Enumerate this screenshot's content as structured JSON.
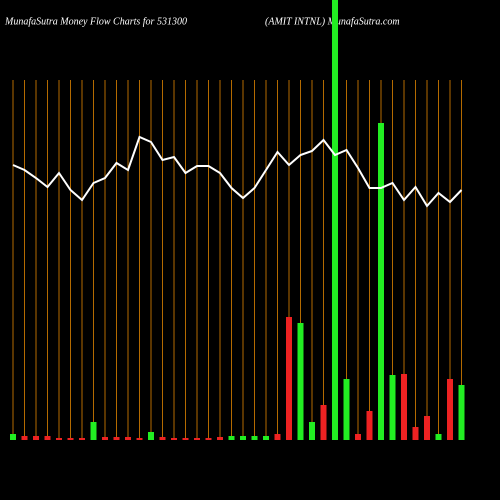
{
  "chart_data": {
    "type": "bar",
    "title": "MunafaSutra  Money Flow  Charts for 531300",
    "subtitle": "(AMIT INTNL) MunafaSutra.com",
    "categories": [
      null,
      null,
      null,
      null,
      null,
      null,
      null,
      null,
      null,
      null,
      null,
      null,
      null,
      null,
      null,
      null,
      null,
      null,
      null,
      null,
      null,
      null,
      null,
      null,
      null,
      null,
      null,
      null,
      null,
      null,
      null,
      null,
      null,
      null,
      null,
      null,
      null,
      null,
      null,
      null
    ],
    "values": [
      6,
      4,
      4,
      4,
      2,
      2,
      2,
      18,
      3,
      3,
      3,
      2,
      8,
      3,
      2,
      2,
      2,
      2,
      3,
      4,
      4,
      4,
      4,
      6,
      123,
      117,
      18,
      35,
      440,
      61,
      6,
      29,
      317,
      65,
      66,
      13,
      24,
      6,
      61,
      55
    ],
    "colors": [
      "#22ee22",
      "#ee2222",
      "#ee2222",
      "#ee2222",
      "#ee2222",
      "#ee2222",
      "#ee2222",
      "#22ee22",
      "#ee2222",
      "#ee2222",
      "#ee2222",
      "#ee2222",
      "#22ee22",
      "#ee2222",
      "#ee2222",
      "#ee2222",
      "#ee2222",
      "#ee2222",
      "#ee2222",
      "#22ee22",
      "#22ee22",
      "#22ee22",
      "#22ee22",
      "#ee2222",
      "#ee2222",
      "#22ee22",
      "#22ee22",
      "#ee2222",
      "#22ee22",
      "#22ee22",
      "#ee2222",
      "#ee2222",
      "#22ee22",
      "#22ee22",
      "#ee2222",
      "#ee2222",
      "#ee2222",
      "#22ee22",
      "#ee2222",
      "#22ee22"
    ],
    "line": {
      "color": "#ffffff",
      "values": [
        275,
        270,
        262,
        253,
        267,
        250,
        240,
        257,
        262,
        277,
        270,
        303,
        298,
        280,
        283,
        267,
        274,
        274,
        267,
        252,
        242,
        252,
        270,
        288,
        275,
        285,
        289,
        300,
        285,
        290,
        272,
        252,
        252,
        257,
        240,
        253,
        234,
        247,
        238,
        250
      ]
    },
    "ylim": [
      0,
      440
    ],
    "grid_color": "#b36a00"
  }
}
